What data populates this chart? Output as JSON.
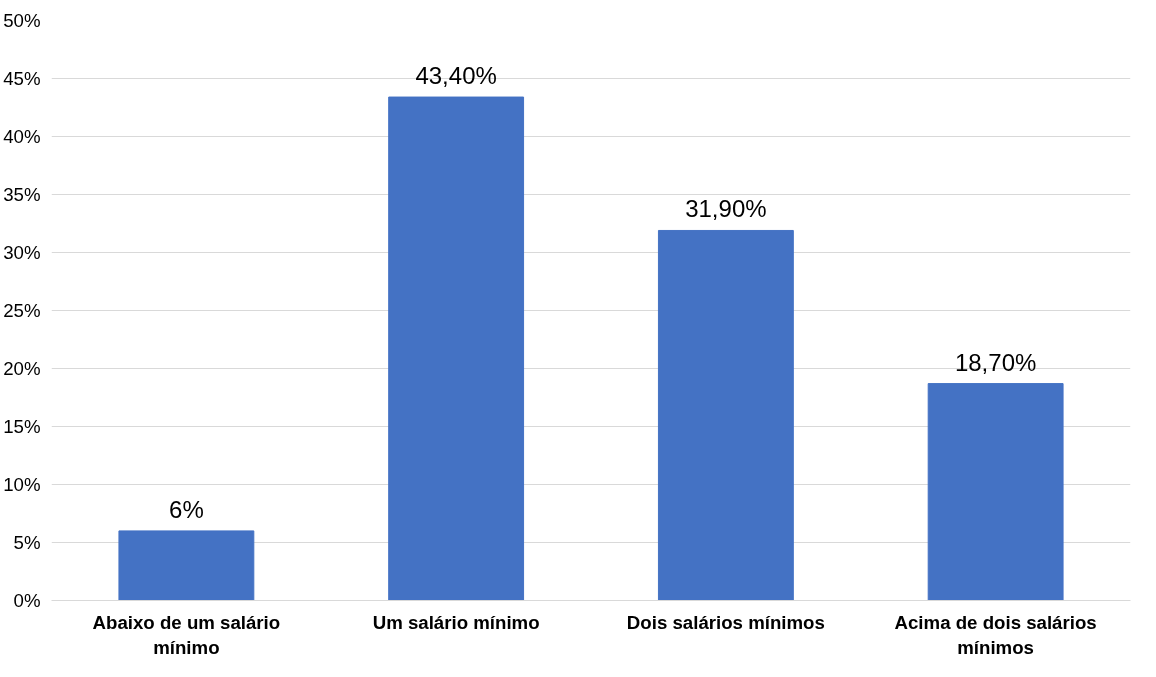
{
  "chart_data": {
    "type": "bar",
    "categories": [
      "Abaixo de um salário mínimo",
      "Um salário mínimo",
      "Dois salários mínimos",
      "Acima de dois salários mínimos"
    ],
    "values": [
      6,
      43.4,
      31.9,
      18.7
    ],
    "value_labels": [
      "6%",
      "43,40%",
      "31,90%",
      "18,70%"
    ],
    "color": "#4472c4",
    "ylim": [
      0,
      50
    ],
    "yticks": [
      {
        "value": 0,
        "label": "0%"
      },
      {
        "value": 5,
        "label": "5%"
      },
      {
        "value": 10,
        "label": "10%"
      },
      {
        "value": 15,
        "label": "15%"
      },
      {
        "value": 20,
        "label": "20%"
      },
      {
        "value": 25,
        "label": "25%"
      },
      {
        "value": 30,
        "label": "30%"
      },
      {
        "value": 35,
        "label": "35%"
      },
      {
        "value": 40,
        "label": "40%"
      },
      {
        "value": 45,
        "label": "45%"
      },
      {
        "value": 50,
        "label": "50%"
      }
    ],
    "grid": "y"
  }
}
